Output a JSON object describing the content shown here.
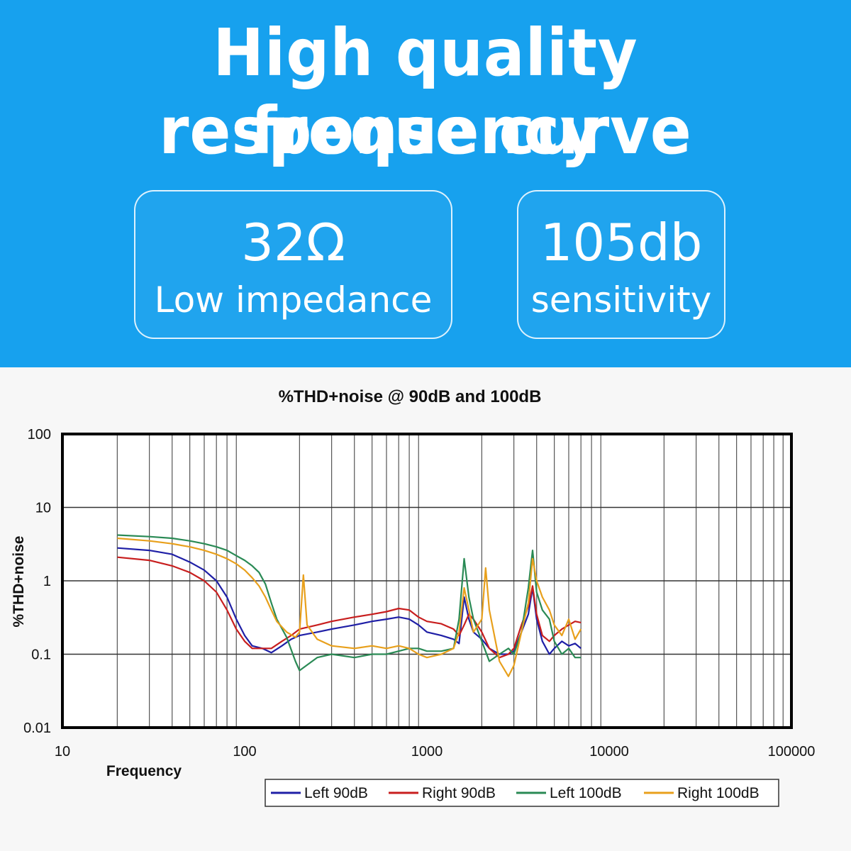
{
  "banner": {
    "headline_line1": "High quality frequency",
    "headline_line2": "response curve",
    "bg_color": "#17a1ee"
  },
  "specs": [
    {
      "value": "32Ω",
      "label": "Low impedance"
    },
    {
      "value": "105db",
      "label": "sensitivity"
    }
  ],
  "chart_data": {
    "type": "line",
    "title": "%THD+noise @ 90dB and 100dB",
    "xlabel": "Frequency",
    "ylabel": "%THD+noise",
    "x_scale": "log",
    "y_scale": "log",
    "xlim": [
      10,
      100000
    ],
    "ylim": [
      0.01,
      100
    ],
    "x_ticks": [
      10,
      100,
      1000,
      10000,
      100000
    ],
    "x_tick_labels": [
      "10",
      "100",
      "1000",
      "10000",
      "100000"
    ],
    "y_ticks": [
      0.01,
      0.1,
      1,
      10,
      100
    ],
    "y_tick_labels": [
      "0.01",
      "0.1",
      "1",
      "10",
      "100"
    ],
    "grid": true,
    "legend_position": "bottom-right",
    "series": [
      {
        "name": "Left 90dB",
        "color": "#1f1fa6",
        "points": [
          [
            20,
            2.8
          ],
          [
            30,
            2.6
          ],
          [
            40,
            2.3
          ],
          [
            50,
            1.8
          ],
          [
            60,
            1.4
          ],
          [
            70,
            1.0
          ],
          [
            80,
            0.6
          ],
          [
            90,
            0.3
          ],
          [
            100,
            0.18
          ],
          [
            110,
            0.13
          ],
          [
            125,
            0.12
          ],
          [
            140,
            0.105
          ],
          [
            160,
            0.13
          ],
          [
            180,
            0.16
          ],
          [
            200,
            0.18
          ],
          [
            250,
            0.2
          ],
          [
            300,
            0.22
          ],
          [
            400,
            0.25
          ],
          [
            500,
            0.28
          ],
          [
            600,
            0.3
          ],
          [
            700,
            0.32
          ],
          [
            800,
            0.3
          ],
          [
            900,
            0.25
          ],
          [
            1000,
            0.2
          ],
          [
            1200,
            0.18
          ],
          [
            1400,
            0.16
          ],
          [
            1500,
            0.14
          ],
          [
            1600,
            0.6
          ],
          [
            1700,
            0.3
          ],
          [
            1800,
            0.2
          ],
          [
            2000,
            0.16
          ],
          [
            2200,
            0.12
          ],
          [
            2500,
            0.1
          ],
          [
            2800,
            0.1
          ],
          [
            3000,
            0.11
          ],
          [
            3300,
            0.2
          ],
          [
            3600,
            0.35
          ],
          [
            3800,
            0.8
          ],
          [
            4000,
            0.3
          ],
          [
            4300,
            0.15
          ],
          [
            4700,
            0.1
          ],
          [
            5000,
            0.12
          ],
          [
            5500,
            0.15
          ],
          [
            6000,
            0.13
          ],
          [
            6500,
            0.14
          ],
          [
            7000,
            0.12
          ]
        ]
      },
      {
        "name": "Right 90dB",
        "color": "#c81e1e",
        "points": [
          [
            20,
            2.1
          ],
          [
            30,
            1.9
          ],
          [
            40,
            1.6
          ],
          [
            50,
            1.3
          ],
          [
            60,
            1.0
          ],
          [
            70,
            0.7
          ],
          [
            80,
            0.4
          ],
          [
            90,
            0.22
          ],
          [
            100,
            0.15
          ],
          [
            110,
            0.12
          ],
          [
            125,
            0.12
          ],
          [
            140,
            0.12
          ],
          [
            160,
            0.15
          ],
          [
            180,
            0.18
          ],
          [
            200,
            0.22
          ],
          [
            250,
            0.25
          ],
          [
            300,
            0.28
          ],
          [
            400,
            0.32
          ],
          [
            500,
            0.35
          ],
          [
            600,
            0.38
          ],
          [
            700,
            0.42
          ],
          [
            800,
            0.4
          ],
          [
            900,
            0.32
          ],
          [
            1000,
            0.28
          ],
          [
            1200,
            0.26
          ],
          [
            1400,
            0.22
          ],
          [
            1500,
            0.18
          ],
          [
            1600,
            0.25
          ],
          [
            1700,
            0.35
          ],
          [
            1800,
            0.3
          ],
          [
            2000,
            0.2
          ],
          [
            2200,
            0.12
          ],
          [
            2500,
            0.09
          ],
          [
            2800,
            0.1
          ],
          [
            3000,
            0.12
          ],
          [
            3300,
            0.25
          ],
          [
            3600,
            0.45
          ],
          [
            3800,
            0.85
          ],
          [
            4000,
            0.35
          ],
          [
            4300,
            0.18
          ],
          [
            4700,
            0.15
          ],
          [
            5000,
            0.18
          ],
          [
            5500,
            0.22
          ],
          [
            6000,
            0.25
          ],
          [
            6500,
            0.28
          ],
          [
            7000,
            0.27
          ]
        ]
      },
      {
        "name": "Left 100dB",
        "color": "#2a8a55",
        "points": [
          [
            20,
            4.2
          ],
          [
            30,
            4.0
          ],
          [
            40,
            3.8
          ],
          [
            50,
            3.5
          ],
          [
            60,
            3.2
          ],
          [
            70,
            2.9
          ],
          [
            80,
            2.6
          ],
          [
            90,
            2.2
          ],
          [
            100,
            1.9
          ],
          [
            110,
            1.6
          ],
          [
            120,
            1.3
          ],
          [
            130,
            0.9
          ],
          [
            140,
            0.5
          ],
          [
            150,
            0.3
          ],
          [
            170,
            0.17
          ],
          [
            190,
            0.08
          ],
          [
            200,
            0.06
          ],
          [
            250,
            0.09
          ],
          [
            300,
            0.1
          ],
          [
            400,
            0.09
          ],
          [
            500,
            0.1
          ],
          [
            600,
            0.1
          ],
          [
            700,
            0.11
          ],
          [
            800,
            0.12
          ],
          [
            900,
            0.12
          ],
          [
            1000,
            0.11
          ],
          [
            1200,
            0.11
          ],
          [
            1400,
            0.12
          ],
          [
            1500,
            0.3
          ],
          [
            1600,
            2.0
          ],
          [
            1700,
            0.6
          ],
          [
            1800,
            0.3
          ],
          [
            2000,
            0.15
          ],
          [
            2200,
            0.08
          ],
          [
            2500,
            0.1
          ],
          [
            2800,
            0.12
          ],
          [
            3000,
            0.1
          ],
          [
            3300,
            0.2
          ],
          [
            3600,
            0.8
          ],
          [
            3800,
            2.6
          ],
          [
            4000,
            0.7
          ],
          [
            4300,
            0.4
          ],
          [
            4700,
            0.3
          ],
          [
            5000,
            0.15
          ],
          [
            5500,
            0.1
          ],
          [
            6000,
            0.12
          ],
          [
            6500,
            0.09
          ],
          [
            7000,
            0.09
          ]
        ]
      },
      {
        "name": "Right 100dB",
        "color": "#e8a01c",
        "points": [
          [
            20,
            3.8
          ],
          [
            30,
            3.5
          ],
          [
            40,
            3.2
          ],
          [
            50,
            2.9
          ],
          [
            60,
            2.6
          ],
          [
            70,
            2.3
          ],
          [
            80,
            2.0
          ],
          [
            90,
            1.7
          ],
          [
            100,
            1.4
          ],
          [
            110,
            1.1
          ],
          [
            120,
            0.85
          ],
          [
            130,
            0.6
          ],
          [
            140,
            0.4
          ],
          [
            150,
            0.28
          ],
          [
            170,
            0.2
          ],
          [
            190,
            0.17
          ],
          [
            200,
            0.2
          ],
          [
            210,
            1.2
          ],
          [
            220,
            0.25
          ],
          [
            250,
            0.16
          ],
          [
            300,
            0.13
          ],
          [
            400,
            0.12
          ],
          [
            500,
            0.13
          ],
          [
            600,
            0.12
          ],
          [
            700,
            0.13
          ],
          [
            800,
            0.12
          ],
          [
            900,
            0.1
          ],
          [
            1000,
            0.09
          ],
          [
            1200,
            0.1
          ],
          [
            1400,
            0.12
          ],
          [
            1500,
            0.2
          ],
          [
            1600,
            0.8
          ],
          [
            1700,
            0.4
          ],
          [
            1800,
            0.2
          ],
          [
            2000,
            0.3
          ],
          [
            2100,
            1.5
          ],
          [
            2200,
            0.4
          ],
          [
            2500,
            0.08
          ],
          [
            2800,
            0.05
          ],
          [
            3000,
            0.07
          ],
          [
            3300,
            0.2
          ],
          [
            3600,
            0.5
          ],
          [
            3800,
            2.0
          ],
          [
            4000,
            1.0
          ],
          [
            4300,
            0.6
          ],
          [
            4700,
            0.4
          ],
          [
            5000,
            0.25
          ],
          [
            5500,
            0.18
          ],
          [
            6000,
            0.3
          ],
          [
            6500,
            0.16
          ],
          [
            7000,
            0.22
          ]
        ]
      }
    ]
  }
}
